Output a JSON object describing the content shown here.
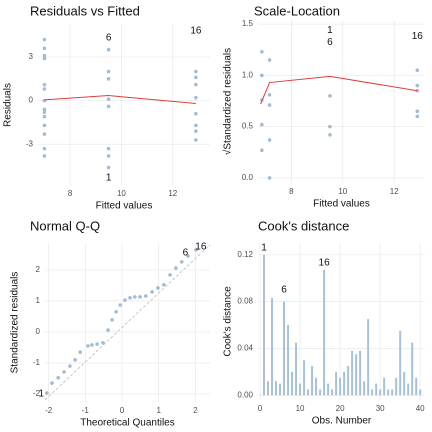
{
  "chart_data": [
    {
      "type": "scatter",
      "title": "Residuals vs Fitted",
      "x_label": "Fitted values",
      "y_label": "Residuals",
      "xlim": [
        6.75,
        13.45
      ],
      "ylim": [
        -5.8,
        5.2
      ],
      "xticks": [
        8,
        10,
        12
      ],
      "yticks": [
        -3,
        0,
        3
      ],
      "grid": true,
      "points": {
        "color": "#8fb0cf",
        "x": [
          7.0,
          7.0,
          7.0,
          7.0,
          7.0,
          7.0,
          7.0,
          7.0,
          7.0,
          7.0,
          7.0,
          7.0,
          7.0,
          7.0,
          9.5,
          9.5,
          9.5,
          9.5,
          9.5,
          9.5,
          9.5,
          9.5,
          12.9,
          12.9,
          12.9,
          12.9,
          12.9,
          12.9,
          12.9,
          12.9
        ],
        "y": [
          4.2,
          3.6,
          3.1,
          2.9,
          1.1,
          0.8,
          0,
          -0.6,
          -0.8,
          -1.1,
          -1.7,
          -2.3,
          -3.3,
          -3.8,
          3.5,
          2.0,
          1.5,
          0.1,
          -0.4,
          -3.3,
          -3.8,
          -4.6,
          2.0,
          1.6,
          1.1,
          0.2,
          -0.9,
          -1.7,
          -2.1,
          -2.7
        ]
      },
      "line": {
        "color": "#d8413a",
        "x": [
          7.0,
          9.5,
          12.9
        ],
        "y": [
          0.05,
          0.35,
          -0.2
        ]
      },
      "annotations": [
        {
          "text": "6",
          "x": 9.5,
          "y": 4.3
        },
        {
          "text": "1",
          "x": 9.5,
          "y": -5.3
        },
        {
          "text": "16",
          "x": 12.9,
          "y": 4.8
        }
      ]
    },
    {
      "type": "scatter",
      "title": "Scale-Location",
      "x_label": "Fitted values",
      "y_label": "√Standardized residuals",
      "xlim": [
        6.7,
        13.2
      ],
      "ylim": [
        -0.05,
        1.54
      ],
      "xticks": [
        8,
        10,
        12
      ],
      "yticks": [
        {
          "value": 0,
          "label": "0.0"
        },
        0.5,
        {
          "value": 1,
          "label": "1.0"
        },
        1.5
      ],
      "grid": true,
      "points": {
        "color": "#8fb0cf",
        "x": [
          6.85,
          7.15,
          6.85,
          7.15,
          6.85,
          7.15,
          6.85,
          7.15,
          6.85,
          7.15,
          9.5,
          9.5,
          9.5,
          12.9,
          12.9,
          12.9,
          12.9,
          12.9
        ],
        "y": [
          1.23,
          1.15,
          1.0,
          0.81,
          0.76,
          0.71,
          0.52,
          0.37,
          0.27,
          0.0,
          0.8,
          0.5,
          0.42,
          1.05,
          0.9,
          0.85,
          0.65,
          0.6
        ]
      },
      "line": {
        "color": "#d8413a",
        "x": [
          6.8,
          7.15,
          9.5,
          12.9
        ],
        "y": [
          0.72,
          0.93,
          0.99,
          0.85
        ]
      },
      "annotations": [
        {
          "text": "1",
          "x": 9.5,
          "y": 1.44
        },
        {
          "text": "6",
          "x": 9.5,
          "y": 1.32
        },
        {
          "text": "16",
          "x": 12.9,
          "y": 1.38
        }
      ]
    },
    {
      "type": "scatter",
      "title": "Normal Q-Q",
      "x_label": "Theoretical Quantiles",
      "y_label": "Standardized residuals",
      "xlim": [
        -2.1,
        2.4
      ],
      "ylim": [
        -2.26,
        2.87
      ],
      "xticks": [
        -2,
        -1,
        0,
        1,
        2
      ],
      "yticks": [
        -2,
        -1,
        0,
        1,
        2
      ],
      "grid": true,
      "points": {
        "color": "#8fb0cf",
        "x": [
          -2.05,
          -1.91,
          -1.74,
          -1.58,
          -1.42,
          -1.28,
          -1.14,
          -0.93,
          -0.82,
          -0.68,
          -0.52,
          -0.38,
          -0.27,
          -0.16,
          -0.05,
          0.08,
          0.22,
          0.35,
          0.49,
          0.65,
          0.82,
          0.98,
          1.14,
          1.31,
          1.47,
          1.63,
          1.8,
          2.02
        ],
        "y": [
          -1.97,
          -1.65,
          -1.48,
          -1.29,
          -1.1,
          -0.9,
          -0.65,
          -0.45,
          -0.42,
          -0.39,
          -0.35,
          0.06,
          0.39,
          0.65,
          0.87,
          1.03,
          1.1,
          1.13,
          1.13,
          1.16,
          1.29,
          1.42,
          1.52,
          1.84,
          2.06,
          2.26,
          2.45,
          2.65
        ]
      },
      "reference_line": {
        "color": "#bbbbbb",
        "x": [
          -2.1,
          2.4
        ],
        "y": [
          -2.19,
          2.81
        ]
      },
      "annotations": [
        {
          "text": "1",
          "x": -2.2,
          "y": -2.0
        },
        {
          "text": "6",
          "x": 1.73,
          "y": 2.55
        },
        {
          "text": "16",
          "x": 2.15,
          "y": 2.75
        }
      ]
    },
    {
      "type": "bar",
      "title": "Cook's distance",
      "x_label": "Obs. Number",
      "y_label": "Cook's distance",
      "xlim": [
        -0.5,
        41.2
      ],
      "ylim": [
        -0.004,
        0.13
      ],
      "xticks": [
        0,
        10,
        20,
        30,
        40
      ],
      "yticks": [
        {
          "value": 0,
          "label": "0.00"
        },
        0.04,
        0.08,
        0.12
      ],
      "grid": true,
      "color": "#a9c1d8",
      "x": [
        1,
        2,
        3,
        4,
        5,
        6,
        7,
        8,
        9,
        10,
        11,
        12,
        13,
        14,
        15,
        16,
        17,
        18,
        19,
        20,
        21,
        22,
        23,
        24,
        25,
        26,
        27,
        28,
        29,
        30,
        31,
        32,
        33,
        34,
        35,
        36,
        37,
        38,
        39,
        40
      ],
      "values": [
        0.12,
        0.012,
        0.083,
        0.012,
        0.01,
        0.08,
        0.06,
        0.02,
        0.045,
        0.01,
        0.03,
        0.005,
        0.025,
        0.015,
        0.005,
        0.107,
        0.01,
        0.005,
        0.02,
        0.015,
        0.02,
        0.025,
        0.038,
        0.035,
        0.038,
        0.012,
        0.065,
        0.005,
        0.01,
        0.005,
        0.015,
        0.005,
        0.005,
        0.015,
        0.055,
        0.02,
        0.01,
        0.045,
        0.015,
        0.005
      ],
      "annotations": [
        {
          "text": "1",
          "x": 1,
          "y": 0.126
        },
        {
          "text": "6",
          "x": 6,
          "y": 0.09
        },
        {
          "text": "16",
          "x": 16,
          "y": 0.113
        }
      ]
    }
  ]
}
